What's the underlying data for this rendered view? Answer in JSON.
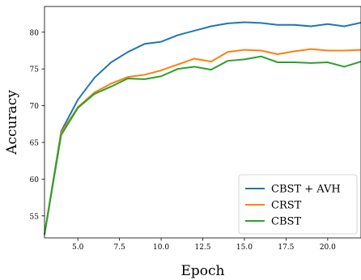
{
  "chart_data": {
    "type": "line",
    "xlabel": "Epoch",
    "ylabel": "Accuracy",
    "xlim": [
      3,
      22
    ],
    "ylim": [
      52,
      83.5
    ],
    "xticks": [
      5.0,
      7.5,
      10.0,
      12.5,
      15.0,
      17.5,
      20.0
    ],
    "xtick_labels": [
      "5.0",
      "7.5",
      "10.0",
      "12.5",
      "15.0",
      "17.5",
      "20.0"
    ],
    "yticks": [
      55,
      60,
      65,
      70,
      75,
      80
    ],
    "ytick_labels": [
      "55",
      "60",
      "65",
      "70",
      "75",
      "80"
    ],
    "grid": false,
    "legend_position": "lower-right",
    "x": [
      3,
      4,
      5,
      6,
      7,
      8,
      9,
      10,
      11,
      12,
      13,
      14,
      15,
      16,
      17,
      18,
      19,
      20,
      21,
      22
    ],
    "series": [
      {
        "name": "CBST + AVH",
        "color": "#1f77b4",
        "values": [
          52.5,
          66.5,
          70.8,
          73.8,
          75.9,
          77.3,
          78.4,
          78.7,
          79.6,
          80.2,
          80.8,
          81.2,
          81.35,
          81.25,
          81.0,
          81.0,
          80.8,
          81.1,
          80.8,
          81.3
        ]
      },
      {
        "name": "CRST",
        "color": "#ff7f0e",
        "values": [
          52.5,
          66.3,
          69.8,
          71.8,
          73.0,
          73.9,
          74.2,
          74.8,
          75.6,
          76.4,
          76.0,
          77.3,
          77.6,
          77.5,
          77.0,
          77.4,
          77.7,
          77.5,
          77.5,
          77.6
        ]
      },
      {
        "name": "CBST",
        "color": "#2ca02c",
        "values": [
          52.5,
          66.0,
          69.7,
          71.6,
          72.6,
          73.7,
          73.6,
          74.0,
          75.0,
          75.3,
          74.9,
          76.1,
          76.3,
          76.7,
          75.9,
          75.9,
          75.8,
          75.9,
          75.3,
          76.0
        ]
      }
    ]
  }
}
